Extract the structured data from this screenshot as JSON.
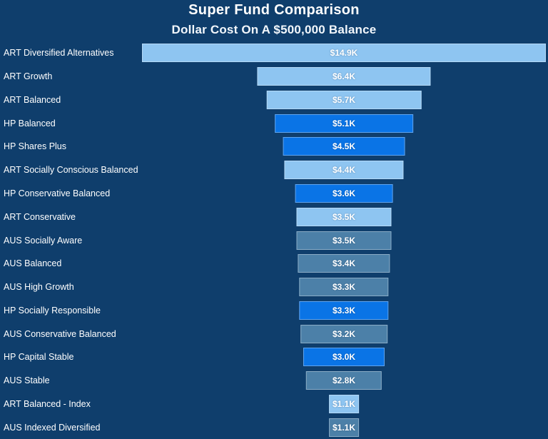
{
  "title": "Super Fund Comparison",
  "subtitle": "Dollar Cost On A $500,000 Balance",
  "colors": {
    "background": "#0F3E6C",
    "title_text": "#FFFFFF",
    "label_text": "#FFFFFF",
    "value_text": "#FFFFFF",
    "ART": "#8EC5F1",
    "HP": "#0A74E6",
    "AUS": "#4C80A8"
  },
  "chart_data": {
    "type": "bar",
    "subtype": "centered-funnel-horizontal",
    "title": "Super Fund Comparison",
    "subtitle": "Dollar Cost On A $500,000 Balance",
    "unit": "thousand dollars",
    "grid": false,
    "legend_position": "none",
    "value_range": [
      0,
      14.9
    ],
    "rows": [
      {
        "label": "ART Diversified Alternatives",
        "value": 14.9,
        "value_label": "$14.9K",
        "group": "ART"
      },
      {
        "label": "ART Growth",
        "value": 6.4,
        "value_label": "$6.4K",
        "group": "ART"
      },
      {
        "label": "ART Balanced",
        "value": 5.7,
        "value_label": "$5.7K",
        "group": "ART"
      },
      {
        "label": "HP Balanced",
        "value": 5.1,
        "value_label": "$5.1K",
        "group": "HP"
      },
      {
        "label": "HP Shares Plus",
        "value": 4.5,
        "value_label": "$4.5K",
        "group": "HP"
      },
      {
        "label": "ART Socially Conscious Balanced",
        "value": 4.4,
        "value_label": "$4.4K",
        "group": "ART"
      },
      {
        "label": "HP Conservative Balanced",
        "value": 3.6,
        "value_label": "$3.6K",
        "group": "HP"
      },
      {
        "label": "ART Conservative",
        "value": 3.5,
        "value_label": "$3.5K",
        "group": "ART"
      },
      {
        "label": "AUS Socially Aware",
        "value": 3.5,
        "value_label": "$3.5K",
        "group": "AUS"
      },
      {
        "label": "AUS Balanced",
        "value": 3.4,
        "value_label": "$3.4K",
        "group": "AUS"
      },
      {
        "label": "AUS High Growth",
        "value": 3.3,
        "value_label": "$3.3K",
        "group": "AUS"
      },
      {
        "label": "HP Socially Responsible",
        "value": 3.3,
        "value_label": "$3.3K",
        "group": "HP"
      },
      {
        "label": "AUS Conservative Balanced",
        "value": 3.2,
        "value_label": "$3.2K",
        "group": "AUS"
      },
      {
        "label": "HP Capital Stable",
        "value": 3.0,
        "value_label": "$3.0K",
        "group": "HP"
      },
      {
        "label": "AUS Stable",
        "value": 2.8,
        "value_label": "$2.8K",
        "group": "AUS"
      },
      {
        "label": "ART Balanced - Index",
        "value": 1.1,
        "value_label": "$1.1K",
        "group": "ART"
      },
      {
        "label": "AUS Indexed Diversified",
        "value": 1.1,
        "value_label": "$1.1K",
        "group": "AUS"
      }
    ]
  }
}
